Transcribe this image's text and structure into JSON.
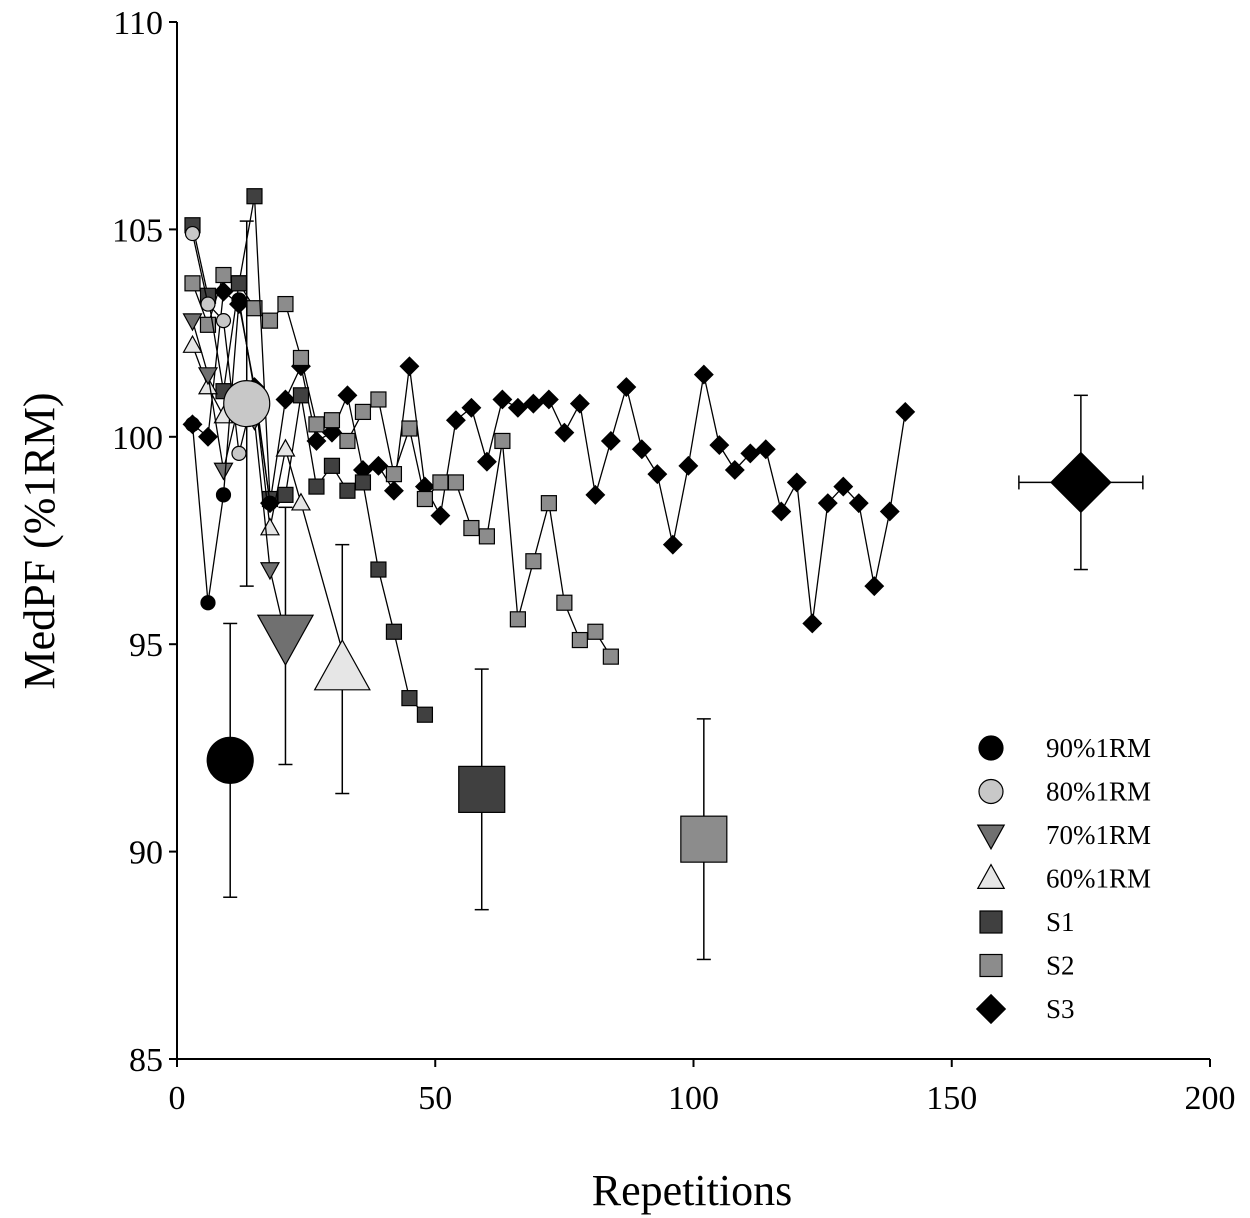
{
  "chart_data": {
    "type": "scatter",
    "title": "",
    "xlabel": "Repetitions",
    "ylabel": "MedPF (%1RM)",
    "xlim": [
      0,
      200
    ],
    "ylim": [
      85,
      110
    ],
    "xticks": [
      0,
      50,
      100,
      150,
      200
    ],
    "yticks": [
      85,
      90,
      95,
      100,
      105,
      110
    ],
    "grid": false,
    "legend_position": "bottom-right",
    "series": [
      {
        "name": "90%1RM",
        "marker": "circle",
        "fill": "#000000",
        "x": [
          3,
          6,
          9,
          12,
          15,
          18
        ],
        "y": [
          100.3,
          96.0,
          98.6,
          103.3,
          101.1,
          98.4
        ],
        "mean": {
          "x": 10.3,
          "y": 92.2,
          "y_err": 3.3,
          "x_err": 0
        }
      },
      {
        "name": "80%1RM",
        "marker": "circle",
        "fill": "#c8c8c8",
        "x": [
          3,
          6,
          9,
          12,
          15
        ],
        "y": [
          104.9,
          103.2,
          102.8,
          99.6,
          101.1
        ],
        "mean": {
          "x": 13.5,
          "y": 100.8,
          "y_err": 4.4,
          "x_err": 0
        }
      },
      {
        "name": "70%1RM",
        "marker": "triangle-down",
        "fill": "#707070",
        "x": [
          3,
          6,
          9,
          12,
          15,
          18,
          21
        ],
        "y": [
          102.8,
          101.5,
          99.2,
          100.8,
          100.4,
          96.8,
          95.2
        ],
        "mean": {
          "x": 21,
          "y": 95.2,
          "y_err": 3.1,
          "x_err": 0
        }
      },
      {
        "name": "60%1RM",
        "marker": "triangle-up",
        "fill": "#e6e6e6",
        "x": [
          3,
          6,
          9,
          12,
          15,
          18,
          21,
          24,
          33
        ],
        "y": [
          102.2,
          101.2,
          100.5,
          100.7,
          101.1,
          97.8,
          99.7,
          98.4,
          94.4
        ],
        "mean": {
          "x": 32,
          "y": 94.4,
          "y_err": 3.0,
          "x_err": 0
        }
      },
      {
        "name": "S1",
        "marker": "square",
        "fill": "#404040",
        "x": [
          3,
          6,
          9,
          12,
          15,
          18,
          21,
          24,
          27,
          30,
          33,
          36,
          39,
          42,
          45,
          48
        ],
        "y": [
          105.1,
          103.4,
          101.1,
          103.7,
          105.8,
          98.5,
          98.6,
          101.0,
          98.8,
          99.3,
          98.7,
          98.9,
          96.8,
          95.3,
          93.7,
          93.3
        ],
        "mean": {
          "x": 59,
          "y": 91.5,
          "y_err": 2.9,
          "x_err": 0
        }
      },
      {
        "name": "S2",
        "marker": "square",
        "fill": "#8c8c8c",
        "x": [
          3,
          6,
          9,
          12,
          15,
          18,
          21,
          24,
          27,
          30,
          33,
          36,
          39,
          42,
          45,
          48,
          51,
          54,
          57,
          60,
          63,
          66,
          69,
          72,
          75,
          78,
          81,
          84
        ],
        "y": [
          103.7,
          102.7,
          103.9,
          103.7,
          103.1,
          102.8,
          103.2,
          101.9,
          100.3,
          100.4,
          99.9,
          100.6,
          100.9,
          99.1,
          100.2,
          98.5,
          98.9,
          98.9,
          97.8,
          97.6,
          99.9,
          95.6,
          97.0,
          98.4,
          96.0,
          95.1,
          95.3,
          94.7
        ],
        "mean": {
          "x": 102,
          "y": 90.3,
          "y_err": 2.9,
          "x_err": 3
        }
      },
      {
        "name": "S3",
        "marker": "diamond",
        "fill": "#000000",
        "x": [
          3,
          6,
          9,
          12,
          15,
          18,
          21,
          24,
          27,
          30,
          33,
          36,
          39,
          42,
          45,
          48,
          51,
          54,
          57,
          60,
          63,
          66,
          69,
          72,
          75,
          78,
          81,
          84,
          87,
          90,
          93,
          96,
          99,
          102,
          105,
          108,
          111,
          114,
          117,
          120,
          123,
          126,
          129,
          132,
          135,
          138,
          141
        ],
        "y": [
          100.3,
          100.0,
          103.5,
          103.2,
          101.2,
          98.4,
          100.9,
          101.7,
          99.9,
          100.1,
          101.0,
          99.2,
          99.3,
          98.7,
          101.7,
          98.8,
          98.1,
          100.4,
          100.7,
          99.4,
          100.9,
          100.7,
          100.8,
          100.9,
          100.1,
          100.8,
          98.6,
          99.9,
          101.2,
          99.7,
          99.1,
          97.4,
          99.3,
          101.5,
          99.8,
          99.2,
          99.6,
          99.7,
          98.2,
          98.9,
          95.5,
          98.4,
          98.8,
          98.4,
          96.4,
          98.2,
          100.6
        ],
        "mean": {
          "x": 175,
          "y": 98.9,
          "y_err": 2.1,
          "x_err": 12
        }
      }
    ]
  }
}
